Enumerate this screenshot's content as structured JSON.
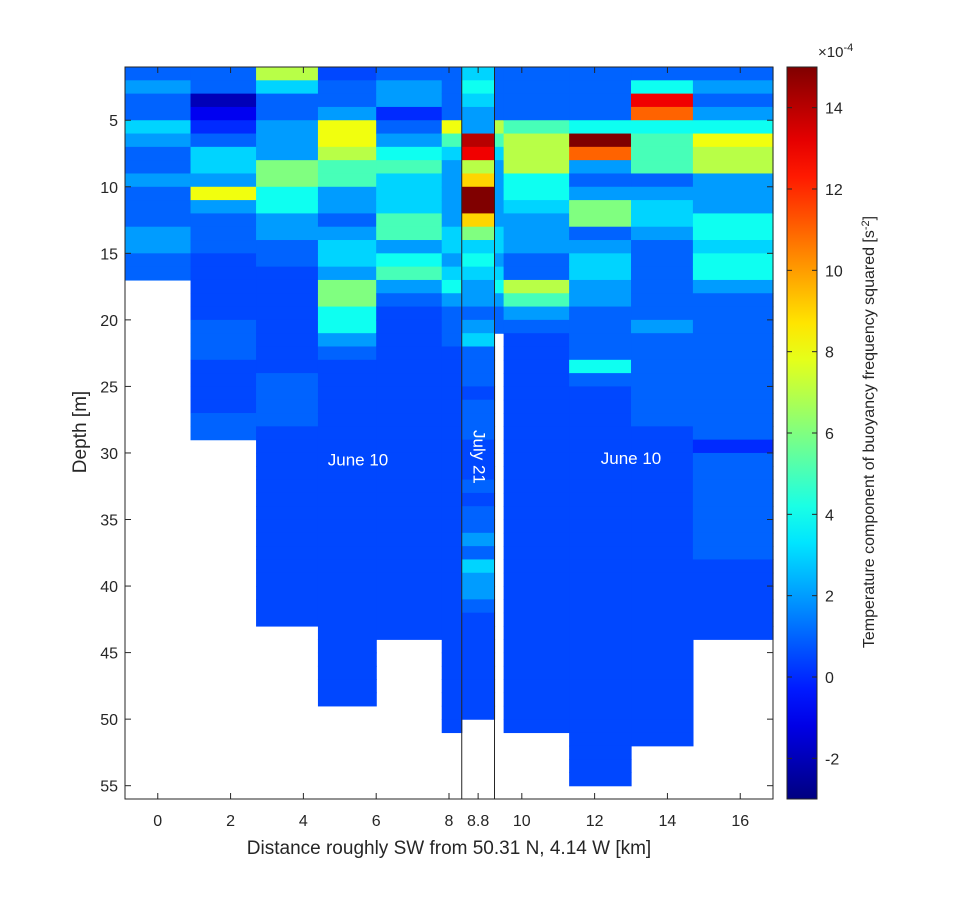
{
  "chart_data": {
    "type": "heatmap",
    "title": "",
    "xlabel": "Distance roughly SW from 50.31 N, 4.14 W [km]",
    "ylabel": "Depth [m]",
    "colorbar_label": "Temperature component of buoyancy frequency squared [s",
    "colorbar_label_sup": "-2",
    "colorbar_label_end": "]",
    "colorbar_multiplier_prefix": "×10",
    "colorbar_multiplier_exp": "-4",
    "colormap": "jet",
    "xlim": [
      -0.9,
      16.9
    ],
    "ylim": [
      56,
      1
    ],
    "clim": [
      -3,
      15
    ],
    "x_ticks": [
      0,
      2,
      4,
      6,
      8,
      10,
      12,
      14,
      16
    ],
    "x_tick_labels": [
      "0",
      "2",
      "4",
      "6",
      "8",
      "10",
      "12",
      "14",
      "16"
    ],
    "extra_x_tick": {
      "value": 8.8,
      "label": "8.8"
    },
    "y_ticks": [
      5,
      10,
      15,
      20,
      25,
      30,
      35,
      40,
      45,
      50,
      55
    ],
    "y_tick_labels": [
      "5",
      "10",
      "15",
      "20",
      "25",
      "30",
      "35",
      "40",
      "45",
      "50",
      "55"
    ],
    "c_ticks": [
      -2,
      0,
      2,
      4,
      6,
      8,
      10,
      12,
      14
    ],
    "c_tick_labels": [
      "-2",
      "0",
      "2",
      "4",
      "6",
      "8",
      "10",
      "12",
      "14"
    ],
    "annotations": [
      {
        "text": "June 10",
        "x": 5.5,
        "y": 30.6,
        "rotate": 0
      },
      {
        "text": "July 21",
        "x": 8.8,
        "y": 30.3,
        "rotate": 90
      },
      {
        "text": "June 10",
        "x": 13.0,
        "y": 30.5,
        "rotate": 0
      }
    ],
    "separators": [
      8.35,
      9.25
    ],
    "series": [
      {
        "name": "",
        "x": 0.0,
        "x0": -0.9,
        "x1": 0.9,
        "dmax": 17,
        "values": [
          1,
          2,
          1,
          1,
          3,
          2,
          1,
          1,
          2,
          1,
          1,
          1,
          2,
          2,
          1,
          1
        ]
      },
      {
        "name": "",
        "x": 1.8,
        "x0": 0.9,
        "x1": 2.7,
        "dmax": 29,
        "values": [
          1,
          1,
          -2,
          -1,
          0,
          1,
          3,
          3,
          2,
          8,
          2,
          1,
          1,
          1,
          0.5,
          0.5,
          0.5,
          0.5,
          0.5,
          1,
          1,
          1,
          0.5,
          0.5,
          0.5,
          0.5,
          1,
          1
        ]
      },
      {
        "name": "",
        "x": 3.55,
        "x0": 2.7,
        "x1": 4.4,
        "dmax": 43,
        "values": [
          7,
          3,
          1,
          1,
          2,
          2,
          2,
          6,
          6,
          4,
          4,
          2,
          2,
          1,
          1,
          0.5,
          0.5,
          0.5,
          0.5,
          0.5,
          0.5,
          0.5,
          0.5,
          1,
          1,
          1,
          1,
          0.5,
          0.5,
          0.5,
          0.5,
          0.5,
          0.5,
          0.5,
          0.5,
          0.5,
          0.5,
          0.5,
          0.5,
          0.5,
          0.5,
          0.5
        ]
      },
      {
        "name": "",
        "x": 5.2,
        "x0": 4.4,
        "x1": 6.0,
        "dmax": 49,
        "values": [
          0.5,
          1,
          1,
          2,
          8,
          8,
          7,
          5,
          5,
          2,
          2,
          1,
          2,
          3,
          3,
          2,
          6,
          6,
          4,
          4,
          2,
          1,
          0.5,
          0.5,
          0.5,
          0.5,
          0.5,
          0.5,
          0.5,
          0.5,
          0.5,
          0.5,
          0.5,
          0.5,
          0.5,
          0.5,
          0.5,
          0.5,
          0.5,
          0.5,
          0.5,
          0.5,
          0.5,
          0.5,
          0.5,
          0.5,
          0.5,
          0.5
        ]
      },
      {
        "name": "",
        "x": 6.8,
        "x0": 6.0,
        "x1": 7.8,
        "dmax": 44,
        "values": [
          1,
          2,
          2,
          0,
          1,
          2,
          4,
          5,
          3,
          3,
          3,
          5,
          5,
          2,
          4,
          5,
          2,
          1,
          0.5,
          0.5,
          0.5,
          0.5,
          0.5,
          0.5,
          0.5,
          0.5,
          0.5,
          0.5,
          0.5,
          0.5,
          0.5,
          0.5,
          0.5,
          0.5,
          0.5,
          0.5,
          0.5,
          0.5,
          0.5,
          0.5,
          0.5,
          0.5,
          0.5
        ]
      },
      {
        "name": "",
        "x": 8.1,
        "x0": 7.8,
        "x1": 8.35,
        "dmax": 51,
        "values": [
          1,
          1,
          1,
          1,
          8,
          5,
          3,
          2,
          2,
          2,
          2,
          2,
          3,
          3,
          2,
          3,
          4,
          2,
          1,
          1,
          1,
          0.5,
          0.5,
          0.5,
          0.5,
          0.5,
          0.5,
          0.5,
          0.5,
          0.5,
          0.5,
          0.5,
          0.5,
          0.5,
          0.5,
          0.5,
          0.5,
          0.5,
          0.5,
          0.5,
          0.5,
          0.5,
          0.5,
          0.5,
          0.5,
          0.5,
          0.5,
          0.5,
          0.5,
          0.5
        ]
      },
      {
        "name": "",
        "x": 8.8,
        "x0": 8.35,
        "x1": 9.25,
        "dmax": 50,
        "values": [
          3,
          4,
          3,
          2,
          2,
          14,
          13,
          7,
          9,
          15,
          15,
          9,
          6,
          3,
          4,
          3,
          2,
          2,
          1,
          2,
          3,
          1,
          1,
          1,
          0.5,
          1,
          1,
          1,
          0.5,
          0.5,
          0.5,
          1,
          0.5,
          1,
          1,
          2,
          1,
          3,
          2,
          2,
          1,
          0.5,
          0.5,
          0.5,
          0.5,
          0.5,
          0.5,
          0.5,
          0.5
        ]
      },
      {
        "name": "",
        "x": 9.5,
        "x0": 9.25,
        "x1": 9.5,
        "dmax": 21,
        "values": [
          1,
          1,
          1,
          1,
          7,
          5,
          3,
          2,
          2,
          2,
          2,
          2,
          3,
          3,
          2,
          3,
          4,
          2,
          1,
          1
        ]
      },
      {
        "name": "",
        "x": 10.3,
        "x0": 9.5,
        "x1": 11.3,
        "dmax": 51,
        "values": [
          1,
          1,
          1,
          1,
          5,
          7,
          7,
          7,
          4,
          4,
          3,
          2,
          2,
          2,
          1,
          1,
          7,
          5,
          2,
          1,
          0.5,
          0.5,
          0.5,
          0.5,
          0.5,
          0.5,
          0.5,
          0.5,
          0.5,
          0.5,
          0.5,
          0.5,
          0.5,
          0.5,
          0.5,
          0.5,
          0.5,
          0.5,
          0.5,
          0.5,
          0.5,
          0.5,
          0.5,
          0.5,
          0.5,
          0.5,
          0.5,
          0.5,
          0.5,
          0.5
        ]
      },
      {
        "name": "",
        "x": 12.1,
        "x0": 11.3,
        "x1": 13.0,
        "dmax": 55,
        "values": [
          1,
          1,
          1,
          1,
          4,
          15,
          11,
          2,
          1,
          2,
          6,
          6,
          1,
          2,
          3,
          3,
          2,
          2,
          1,
          1,
          1,
          1,
          4,
          1,
          0.5,
          0.5,
          0.5,
          0.5,
          0.5,
          0.5,
          0.5,
          0.5,
          0.5,
          0.5,
          0.5,
          0.5,
          0.5,
          0.5,
          0.5,
          0.5,
          0.5,
          0.5,
          0.5,
          0.5,
          0.5,
          0.5,
          0.5,
          0.5,
          0.5,
          0.5,
          0.5,
          0.5,
          0.5,
          0.5
        ]
      },
      {
        "name": "",
        "x": 13.85,
        "x0": 13.0,
        "x1": 14.7,
        "dmax": 52,
        "values": [
          1,
          4,
          13,
          11,
          4,
          5,
          5,
          5,
          1,
          2,
          3,
          3,
          2,
          1,
          1,
          1,
          1,
          1,
          1,
          2,
          1,
          1,
          1,
          1,
          1,
          1,
          1,
          0.5,
          0.5,
          0.5,
          0.5,
          0.5,
          0.5,
          0.5,
          0.5,
          0.5,
          0.5,
          0.5,
          0.5,
          0.5,
          0.5,
          0.5,
          0.5,
          0.5,
          0.5,
          0.5,
          0.5,
          0.5,
          0.5,
          0.5,
          0.5
        ]
      },
      {
        "name": "",
        "x": 15.6,
        "x0": 14.7,
        "x1": 16.9,
        "dmax": 44,
        "values": [
          1,
          2,
          1,
          2,
          4,
          8,
          7,
          7,
          2,
          2,
          2,
          4,
          4,
          3,
          4,
          4,
          2,
          1,
          1,
          1,
          1,
          1,
          1,
          1,
          1,
          1,
          1,
          1,
          0,
          1,
          1,
          1,
          1,
          1,
          1,
          1,
          1,
          0.5,
          0.5,
          0.5,
          0.5,
          0.5,
          0.5
        ]
      }
    ]
  }
}
